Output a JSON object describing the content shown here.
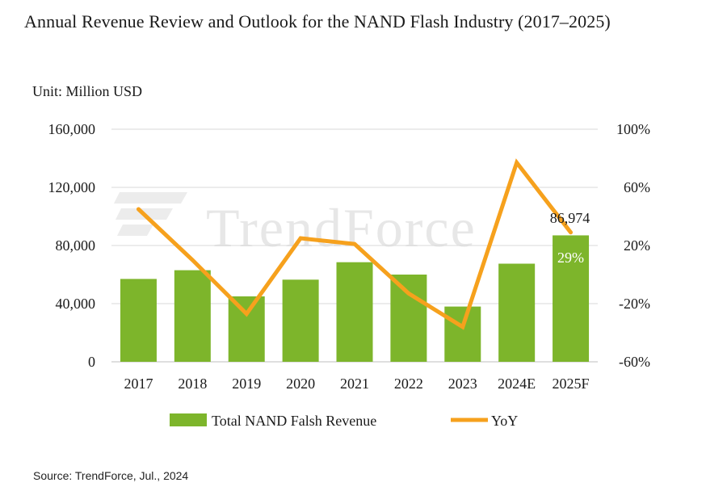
{
  "title": "Annual Revenue Review and Outlook for the NAND Flash Industry (2017–2025)",
  "unit_label": "Unit: Million USD",
  "source": "Source: TrendForce, Jul., 2024",
  "watermark": "TrendForce",
  "colors": {
    "bar": "#7db52b",
    "line": "#f6a11d",
    "grid": "#d9d9d9"
  },
  "chart_data": {
    "type": "bar",
    "title": "Annual Revenue Review and Outlook for the NAND Flash Industry (2017–2025)",
    "categories": [
      "2017",
      "2018",
      "2019",
      "2020",
      "2021",
      "2022",
      "2023",
      "2024E",
      "2025F"
    ],
    "series": [
      {
        "name": "Total NAND Falsh Revenue",
        "type": "bar",
        "axis": "left",
        "values": [
          57000,
          63000,
          45000,
          56500,
          68500,
          60000,
          38000,
          67500,
          86974
        ]
      },
      {
        "name": "YoY",
        "type": "line",
        "axis": "right",
        "values": [
          45,
          10,
          -27,
          25,
          21,
          -13,
          -36,
          77,
          29
        ]
      }
    ],
    "ylim": [
      0,
      160000
    ],
    "y2lim": [
      -60,
      100
    ],
    "yticks": [
      0,
      40000,
      80000,
      120000,
      160000
    ],
    "yticklabels": [
      "0",
      "40,000",
      "80,000",
      "120,000",
      "160,000"
    ],
    "y2ticks": [
      -60,
      -20,
      20,
      60,
      100
    ],
    "y2ticklabels": [
      "-60%",
      "-20%",
      "20%",
      "60%",
      "100%"
    ],
    "data_labels": {
      "value_label": "86,974",
      "yoy_label": "29%"
    },
    "legend": {
      "position": "bottom",
      "bar_label": "Total NAND Falsh Revenue",
      "line_label": "YoY"
    },
    "grid": true
  }
}
